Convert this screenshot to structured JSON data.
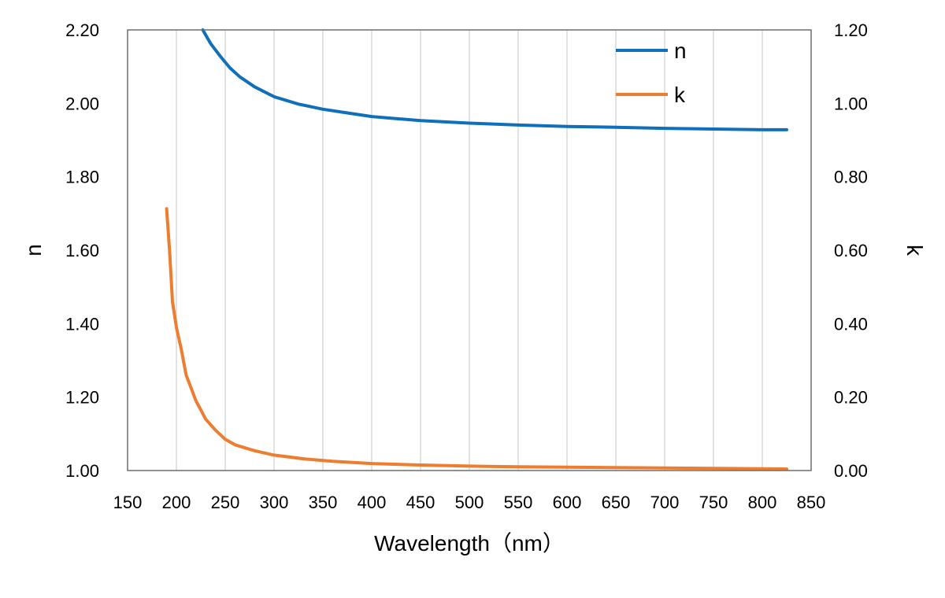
{
  "chart_data": {
    "type": "line",
    "title": "",
    "xlabel": "Wavelength（nm）",
    "ylabel": "n",
    "y2label": "k",
    "xlim": [
      150,
      850
    ],
    "ylim": [
      1.0,
      2.2
    ],
    "y2lim": [
      0.0,
      1.2
    ],
    "xticks": [
      "150",
      "200",
      "250",
      "300",
      "350",
      "400",
      "450",
      "500",
      "550",
      "600",
      "650",
      "700",
      "750",
      "800",
      "850"
    ],
    "yticks": [
      "1.00",
      "1.20",
      "1.40",
      "1.60",
      "1.80",
      "2.00",
      "2.20"
    ],
    "y2ticks": [
      "0.00",
      "0.20",
      "0.40",
      "0.60",
      "0.80",
      "1.00",
      "1.20"
    ],
    "grid": "vertical",
    "legend_position": "top-right",
    "series": [
      {
        "name": "n",
        "axis": "left",
        "color": "#0f6fb8",
        "x": [
          227,
          235,
          245,
          255,
          265,
          280,
          300,
          325,
          350,
          375,
          400,
          450,
          500,
          550,
          600,
          650,
          700,
          750,
          800,
          825
        ],
        "y": [
          2.2,
          2.163,
          2.128,
          2.096,
          2.072,
          2.045,
          2.018,
          1.998,
          1.984,
          1.974,
          1.964,
          1.953,
          1.946,
          1.941,
          1.937,
          1.935,
          1.932,
          1.93,
          1.928,
          1.928
        ]
      },
      {
        "name": "k",
        "axis": "right",
        "color": "#ed7d31",
        "x": [
          190,
          193,
          196,
          200,
          205,
          210,
          220,
          230,
          240,
          250,
          260,
          280,
          300,
          330,
          360,
          400,
          450,
          500,
          550,
          600,
          650,
          700,
          750,
          800,
          825
        ],
        "y": [
          0.713,
          0.6,
          0.46,
          0.39,
          0.33,
          0.26,
          0.19,
          0.14,
          0.11,
          0.085,
          0.07,
          0.054,
          0.042,
          0.032,
          0.025,
          0.019,
          0.015,
          0.012,
          0.01,
          0.009,
          0.008,
          0.007,
          0.006,
          0.005,
          0.004
        ]
      }
    ]
  }
}
